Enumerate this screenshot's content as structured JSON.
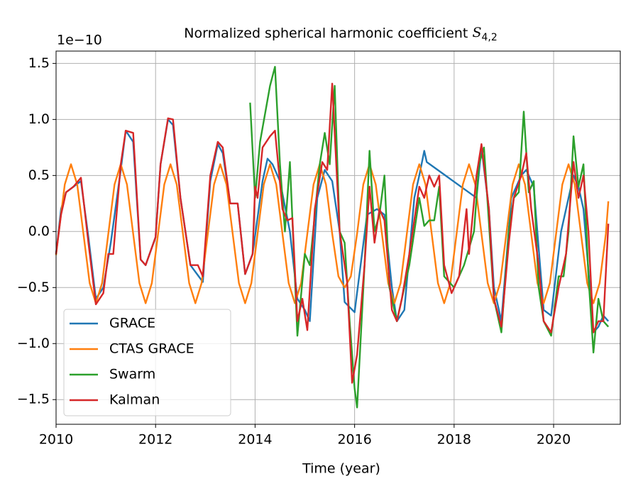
{
  "chart_data": {
    "type": "line",
    "title": "Normalized spherical harmonic coefficient",
    "title_symbol": "S",
    "title_subscript": "4,2",
    "y_offset_label": "1e−10",
    "xlabel": "Time (year)",
    "xlim": [
      2010,
      2021.34
    ],
    "xticks": [
      2010,
      2012,
      2014,
      2016,
      2018,
      2020
    ],
    "ylim": [
      -1.72,
      1.61
    ],
    "yticks": [
      {
        "value": -1.5,
        "label": "−1.5"
      },
      {
        "value": -1.0,
        "label": "−1.0"
      },
      {
        "value": -0.5,
        "label": "−0.5"
      },
      {
        "value": 0.0,
        "label": "0.0"
      },
      0.5,
      {
        "value": 1.0,
        "label": "1.0"
      },
      1.5
    ],
    "grid": true,
    "legend": "lower left",
    "series": [
      {
        "name": "GRACE",
        "color": "#1f77b4",
        "x": [
          2010.0,
          2010.1,
          2010.2,
          2010.35,
          2010.5,
          2010.65,
          2010.8,
          2010.95,
          2011.1,
          2011.3,
          2011.4,
          2011.55,
          2011.7,
          2011.8,
          2012.0,
          2012.1,
          2012.25,
          2012.35,
          2012.5,
          2012.7,
          2012.95,
          2013.1,
          2013.25,
          2013.35,
          2013.5,
          2013.65,
          2013.8,
          2013.95,
          2014.15,
          2014.25,
          2014.35,
          2014.5,
          2014.7,
          2014.85,
          2015.0,
          2015.1,
          2015.25,
          2015.4,
          2015.55,
          2015.7,
          2015.8,
          2016.0,
          2016.25,
          2016.45,
          2016.6,
          2016.75,
          2016.85,
          2017.0,
          2017.2,
          2017.3,
          2017.4,
          2017.45,
          2018.45,
          2018.55,
          2018.7,
          2018.8,
          2018.95,
          2019.15,
          2019.35,
          2019.45,
          2019.6,
          2019.8,
          2019.95,
          2020.15,
          2020.4,
          2020.5,
          2020.6,
          2020.8,
          2020.9,
          2021.0,
          2021.1
        ],
        "values": [
          -0.2,
          0.2,
          0.35,
          0.4,
          0.45,
          -0.05,
          -0.6,
          -0.5,
          -0.1,
          0.55,
          0.9,
          0.8,
          -0.25,
          -0.3,
          -0.05,
          0.6,
          1.0,
          0.95,
          0.3,
          -0.3,
          -0.45,
          0.45,
          0.78,
          0.7,
          0.25,
          0.25,
          -0.38,
          -0.2,
          0.45,
          0.65,
          0.6,
          0.45,
          0.0,
          -0.6,
          -0.7,
          -0.8,
          0.3,
          0.55,
          0.45,
          0.0,
          -0.63,
          -0.72,
          0.15,
          0.2,
          0.15,
          -0.5,
          -0.8,
          -0.7,
          0.3,
          0.5,
          0.72,
          0.62,
          0.3,
          0.75,
          0.2,
          -0.5,
          -0.8,
          0.3,
          0.5,
          0.55,
          0.4,
          -0.7,
          -0.75,
          0.0,
          0.5,
          0.4,
          0.2,
          -0.9,
          -0.85,
          -0.75,
          -0.8
        ]
      },
      {
        "name": "CTAS GRACE",
        "color": "#ff7f0e",
        "x": [
          2010.0,
          2010.05,
          2010.175,
          2010.3,
          2010.425,
          2010.55,
          2010.675,
          2010.8,
          2010.925,
          2011.05,
          2011.175,
          2011.3,
          2011.425,
          2011.55,
          2011.675,
          2011.8,
          2011.925,
          2012.05,
          2012.175,
          2012.3,
          2012.425,
          2012.55,
          2012.675,
          2012.8,
          2012.925,
          2013.05,
          2013.175,
          2013.3,
          2013.425,
          2013.55,
          2013.675,
          2013.8,
          2013.925,
          2014.05,
          2014.175,
          2014.3,
          2014.425,
          2014.55,
          2014.675,
          2014.8,
          2014.925,
          2015.05,
          2015.175,
          2015.3,
          2015.425,
          2015.55,
          2015.675,
          2015.8,
          2015.925,
          2016.05,
          2016.175,
          2016.3,
          2016.425,
          2016.55,
          2016.675,
          2016.8,
          2016.925,
          2017.05,
          2017.175,
          2017.3,
          2017.425,
          2017.55,
          2017.675,
          2017.8,
          2017.925,
          2018.05,
          2018.175,
          2018.3,
          2018.425,
          2018.55,
          2018.675,
          2018.8,
          2018.925,
          2019.05,
          2019.175,
          2019.3,
          2019.425,
          2019.55,
          2019.675,
          2019.8,
          2019.925,
          2020.05,
          2020.175,
          2020.3,
          2020.425,
          2020.55,
          2020.675,
          2020.8,
          2020.925,
          2021.05,
          2021.1
        ],
        "values": [
          -0.21,
          -0.02,
          0.42,
          0.6,
          0.42,
          -0.02,
          -0.46,
          -0.64,
          -0.46,
          -0.02,
          0.42,
          0.6,
          0.42,
          -0.02,
          -0.46,
          -0.64,
          -0.46,
          -0.02,
          0.42,
          0.6,
          0.42,
          -0.02,
          -0.46,
          -0.64,
          -0.46,
          -0.02,
          0.42,
          0.6,
          0.42,
          -0.02,
          -0.46,
          -0.64,
          -0.46,
          -0.02,
          0.42,
          0.6,
          0.42,
          -0.02,
          -0.46,
          -0.64,
          -0.46,
          -0.02,
          0.42,
          0.6,
          0.42,
          -0.02,
          -0.4,
          -0.5,
          -0.4,
          -0.02,
          0.42,
          0.6,
          0.42,
          -0.02,
          -0.46,
          -0.64,
          -0.46,
          -0.02,
          0.42,
          0.6,
          0.42,
          -0.02,
          -0.46,
          -0.64,
          -0.46,
          -0.02,
          0.42,
          0.6,
          0.42,
          -0.02,
          -0.46,
          -0.64,
          -0.46,
          -0.02,
          0.42,
          0.6,
          0.42,
          -0.02,
          -0.46,
          -0.64,
          -0.46,
          -0.02,
          0.42,
          0.6,
          0.42,
          -0.02,
          -0.46,
          -0.64,
          -0.46,
          -0.02,
          0.27
        ]
      },
      {
        "name": "Swarm",
        "color": "#2ca02c",
        "x": [
          2013.9,
          2014.0,
          2014.1,
          2014.3,
          2014.4,
          2014.5,
          2014.6,
          2014.7,
          2014.85,
          2015.0,
          2015.1,
          2015.3,
          2015.4,
          2015.5,
          2015.6,
          2015.7,
          2015.8,
          2015.9,
          2016.0,
          2016.05,
          2016.2,
          2016.3,
          2016.4,
          2016.5,
          2016.6,
          2016.7,
          2016.85,
          2017.0,
          2017.1,
          2017.3,
          2017.4,
          2017.5,
          2017.6,
          2017.7,
          2017.8,
          2018.0,
          2018.2,
          2018.4,
          2018.5,
          2018.6,
          2018.8,
          2018.95,
          2019.1,
          2019.2,
          2019.3,
          2019.4,
          2019.5,
          2019.6,
          2019.7,
          2019.8,
          2019.95,
          2020.1,
          2020.2,
          2020.3,
          2020.4,
          2020.5,
          2020.6,
          2020.7,
          2020.8,
          2020.9,
          2021.0,
          2021.1
        ],
        "values": [
          1.15,
          0.3,
          0.8,
          1.3,
          1.47,
          0.6,
          0.0,
          0.62,
          -0.93,
          -0.2,
          -0.3,
          0.6,
          0.88,
          0.6,
          1.3,
          0.0,
          -0.1,
          -0.8,
          -1.4,
          -1.57,
          -0.3,
          0.72,
          0.0,
          0.15,
          0.5,
          -0.5,
          -0.8,
          -0.5,
          -0.3,
          0.3,
          0.05,
          0.1,
          0.1,
          0.4,
          -0.4,
          -0.5,
          -0.3,
          0.0,
          0.6,
          0.75,
          -0.6,
          -0.9,
          0.0,
          0.3,
          0.35,
          1.07,
          0.35,
          0.45,
          -0.5,
          -0.8,
          -0.93,
          -0.4,
          -0.4,
          0.0,
          0.85,
          0.4,
          0.6,
          -0.4,
          -1.08,
          -0.6,
          -0.8,
          -0.85
        ]
      },
      {
        "name": "Kalman",
        "color": "#d62728",
        "x": [
          2010.0,
          2010.1,
          2010.2,
          2010.35,
          2010.5,
          2010.65,
          2010.8,
          2010.95,
          2011.05,
          2011.15,
          2011.3,
          2011.4,
          2011.55,
          2011.7,
          2011.8,
          2012.0,
          2012.1,
          2012.25,
          2012.35,
          2012.5,
          2012.7,
          2012.85,
          2012.95,
          2013.1,
          2013.25,
          2013.35,
          2013.5,
          2013.65,
          2013.8,
          2013.95,
          2014.0,
          2014.05,
          2014.15,
          2014.3,
          2014.4,
          2014.55,
          2014.65,
          2014.75,
          2014.85,
          2014.95,
          2015.05,
          2015.2,
          2015.35,
          2015.45,
          2015.55,
          2015.7,
          2015.85,
          2015.95,
          2016.05,
          2016.2,
          2016.3,
          2016.4,
          2016.5,
          2016.6,
          2016.75,
          2016.85,
          2016.95,
          2017.1,
          2017.3,
          2017.4,
          2017.5,
          2017.6,
          2017.7,
          2017.8,
          2017.95,
          2018.1,
          2018.25,
          2018.3,
          2018.45,
          2018.55,
          2018.7,
          2018.8,
          2018.95,
          2019.1,
          2019.2,
          2019.35,
          2019.45,
          2019.55,
          2019.7,
          2019.8,
          2019.95,
          2020.1,
          2020.25,
          2020.4,
          2020.5,
          2020.6,
          2020.7,
          2020.8,
          2020.9,
          2021.0,
          2021.1
        ],
        "values": [
          -0.2,
          0.15,
          0.35,
          0.4,
          0.48,
          -0.1,
          -0.65,
          -0.55,
          -0.2,
          -0.2,
          0.6,
          0.9,
          0.88,
          -0.25,
          -0.3,
          -0.05,
          0.6,
          1.01,
          1.0,
          0.3,
          -0.3,
          -0.3,
          -0.4,
          0.5,
          0.8,
          0.75,
          0.25,
          0.25,
          -0.38,
          -0.2,
          0.4,
          0.3,
          0.75,
          0.85,
          0.9,
          0.2,
          0.1,
          0.12,
          -0.8,
          -0.6,
          -0.88,
          0.2,
          0.62,
          0.55,
          1.32,
          0.0,
          -0.45,
          -1.35,
          -1.1,
          -0.3,
          0.4,
          -0.1,
          0.2,
          0.1,
          -0.7,
          -0.8,
          -0.6,
          -0.2,
          0.4,
          0.3,
          0.5,
          0.4,
          0.5,
          -0.3,
          -0.55,
          -0.4,
          0.2,
          -0.2,
          0.5,
          0.78,
          0.2,
          -0.6,
          -0.85,
          -0.1,
          0.3,
          0.5,
          0.7,
          0.2,
          -0.3,
          -0.8,
          -0.9,
          -0.5,
          -0.2,
          0.62,
          0.3,
          0.5,
          0.0,
          -0.9,
          -0.8,
          -0.8,
          0.07
        ]
      }
    ]
  }
}
